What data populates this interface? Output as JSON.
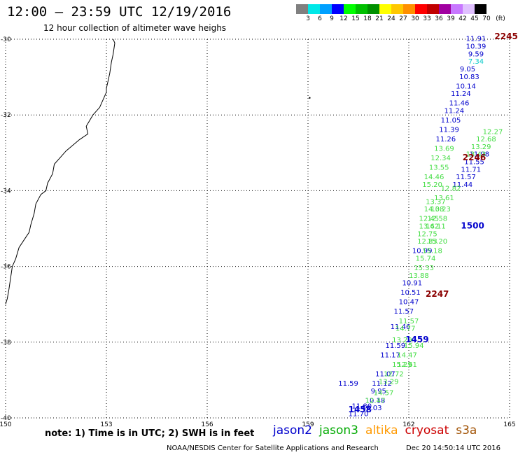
{
  "header": {
    "title": "12:00 – 23:59 UTC 12/19/2016",
    "subtitle": "12 hour collection of altimeter wave heighs"
  },
  "colorbar": {
    "colors": [
      "#808080",
      "#00e8e8",
      "#00a0ff",
      "#0000ff",
      "#00ff00",
      "#00c000",
      "#009000",
      "#ffff00",
      "#ffc800",
      "#ff9000",
      "#ff0000",
      "#c00000",
      "#a000a0",
      "#c878ff",
      "#e0c0ff",
      "#000000"
    ],
    "labels": [
      "3",
      "6",
      "9",
      "12",
      "15",
      "18",
      "21",
      "24",
      "27",
      "30",
      "33",
      "36",
      "39",
      "42",
      "45",
      "70"
    ],
    "unit": "(ft)"
  },
  "map": {
    "lon_min": 150,
    "lon_max": 165,
    "lat_min": -40,
    "lat_max": -30,
    "lat_ticks": [
      {
        "value": -30,
        "label": "-30"
      },
      {
        "value": -32,
        "label": "-32"
      },
      {
        "value": -34,
        "label": "-34"
      },
      {
        "value": -36,
        "label": "-36"
      },
      {
        "value": -38,
        "label": "-38"
      },
      {
        "value": -40,
        "label": "-40"
      }
    ],
    "lon_ticks": [
      {
        "value": 150,
        "label": "150"
      },
      {
        "value": 153,
        "label": "153"
      },
      {
        "value": 156,
        "label": "156"
      },
      {
        "value": 159,
        "label": "159"
      },
      {
        "value": 162,
        "label": "162"
      },
      {
        "value": 165,
        "label": "165"
      }
    ],
    "coastline": [
      [
        153.2,
        -30.0
      ],
      [
        153.25,
        -30.1
      ],
      [
        153.2,
        -30.4
      ],
      [
        153.15,
        -30.6
      ],
      [
        153.1,
        -30.9
      ],
      [
        153.05,
        -31.1
      ],
      [
        153.0,
        -31.3
      ],
      [
        153.0,
        -31.4
      ],
      [
        152.9,
        -31.6
      ],
      [
        152.8,
        -31.8
      ],
      [
        152.6,
        -32.0
      ],
      [
        152.5,
        -32.15
      ],
      [
        152.4,
        -32.3
      ],
      [
        152.45,
        -32.5
      ],
      [
        152.2,
        -32.65
      ],
      [
        152.0,
        -32.8
      ],
      [
        151.8,
        -32.95
      ],
      [
        151.6,
        -33.15
      ],
      [
        151.45,
        -33.3
      ],
      [
        151.4,
        -33.55
      ],
      [
        151.25,
        -33.8
      ],
      [
        151.2,
        -34.0
      ],
      [
        151.05,
        -34.1
      ],
      [
        150.9,
        -34.35
      ],
      [
        150.85,
        -34.6
      ],
      [
        150.75,
        -34.9
      ],
      [
        150.7,
        -35.1
      ],
      [
        150.55,
        -35.3
      ],
      [
        150.4,
        -35.5
      ],
      [
        150.3,
        -35.8
      ],
      [
        150.2,
        -36.0
      ],
      [
        150.15,
        -36.3
      ],
      [
        150.1,
        -36.6
      ],
      [
        150.05,
        -36.85
      ],
      [
        150.0,
        -37.0
      ]
    ],
    "islands": [
      [
        159.05,
        -31.55
      ]
    ]
  },
  "satellites": [
    {
      "name": "jason2",
      "color": "#0000cc"
    },
    {
      "name": "jason3",
      "color": "#00aa00"
    },
    {
      "name": "altika",
      "color": "#ff9900"
    },
    {
      "name": "cryosat",
      "color": "#cc0000"
    },
    {
      "name": "s3a",
      "color": "#a05000"
    }
  ],
  "times": [
    {
      "label": "2245",
      "lon": 164.55,
      "lat": -30.0,
      "color": "#8b0000"
    },
    {
      "label": "2246",
      "lon": 163.6,
      "lat": -33.2,
      "color": "#8b0000"
    },
    {
      "label": "1500",
      "lon": 163.55,
      "lat": -35.0,
      "color": "#0000cc"
    },
    {
      "label": "2247",
      "lon": 162.5,
      "lat": -36.8,
      "color": "#8b0000"
    },
    {
      "label": "1459",
      "lon": 161.9,
      "lat": -38.0,
      "color": "#0000cc"
    },
    {
      "label": "1458",
      "lon": 160.2,
      "lat": -39.85,
      "color": "#0000cc"
    }
  ],
  "chart_data": {
    "type": "scatter",
    "title": "12:00 – 23:59 UTC 12/19/2016",
    "subtitle": "12 hour collection of altimeter wave heighs",
    "xlabel": "",
    "ylabel": "",
    "xlim": [
      150,
      165
    ],
    "ylim": [
      -40,
      -30
    ],
    "series": [
      {
        "name": "jason2",
        "color": "#0000cc",
        "points": [
          [
            164.0,
            -30.05,
            "11.91"
          ],
          [
            164.0,
            -30.25,
            "10.39"
          ],
          [
            164.0,
            -30.45,
            "9.59"
          ],
          [
            164.0,
            -30.65,
            "7.34"
          ],
          [
            163.75,
            -30.85,
            "9.05"
          ],
          [
            163.8,
            -31.05,
            "10.83"
          ],
          [
            163.7,
            -31.3,
            "10.14"
          ],
          [
            163.55,
            -31.5,
            "11.24"
          ],
          [
            163.5,
            -31.75,
            "11.46"
          ],
          [
            163.35,
            -31.95,
            "11.24"
          ],
          [
            163.25,
            -32.2,
            "11.05"
          ],
          [
            163.2,
            -32.45,
            "11.39"
          ],
          [
            163.1,
            -32.7,
            "11.26"
          ],
          [
            164.1,
            -33.1,
            "11.98"
          ],
          [
            163.95,
            -33.3,
            "11.55"
          ],
          [
            163.85,
            -33.5,
            "11.71"
          ],
          [
            163.7,
            -33.7,
            "11.57"
          ],
          [
            163.6,
            -33.9,
            "11.44"
          ],
          [
            162.4,
            -35.65,
            "10.99"
          ],
          [
            162.1,
            -36.5,
            "10.91"
          ],
          [
            162.05,
            -36.75,
            "10.51"
          ],
          [
            162.0,
            -37.0,
            "10.47"
          ],
          [
            161.85,
            -37.25,
            "11.57"
          ],
          [
            161.75,
            -37.65,
            "11.46"
          ],
          [
            161.6,
            -38.15,
            "11.59"
          ],
          [
            161.45,
            -38.4,
            "11.17"
          ],
          [
            161.3,
            -38.9,
            "11.07"
          ],
          [
            161.2,
            -39.15,
            "11.12"
          ],
          [
            161.1,
            -39.35,
            "9.95"
          ],
          [
            161.0,
            -39.6,
            "10.18"
          ],
          [
            160.9,
            -39.8,
            "10.03"
          ],
          [
            160.5,
            -39.95,
            "11.70"
          ],
          [
            160.6,
            -39.75,
            "11.80"
          ],
          [
            160.2,
            -39.15,
            "11.59"
          ]
        ]
      },
      {
        "name": "jason3",
        "color": "#44dd44",
        "points": [
          [
            164.5,
            -32.5,
            "12.27"
          ],
          [
            164.3,
            -32.7,
            "12.68"
          ],
          [
            164.15,
            -32.9,
            "13.29"
          ],
          [
            164.0,
            -33.1,
            "13.43"
          ],
          [
            163.05,
            -32.95,
            "13.69"
          ],
          [
            162.95,
            -33.2,
            "12.34"
          ],
          [
            162.9,
            -33.45,
            "13.55"
          ],
          [
            162.75,
            -33.7,
            "14.46"
          ],
          [
            162.7,
            -33.9,
            "15.20"
          ],
          [
            163.25,
            -34.0,
            "12.82"
          ],
          [
            163.05,
            -34.25,
            "13.61"
          ],
          [
            162.8,
            -34.35,
            "13.37"
          ],
          [
            162.75,
            -34.55,
            "14.08"
          ],
          [
            162.95,
            -34.55,
            "13.23"
          ],
          [
            162.6,
            -34.8,
            "12.45"
          ],
          [
            162.85,
            -34.8,
            "12.58"
          ],
          [
            162.6,
            -35.0,
            "13.62"
          ],
          [
            162.8,
            -35.0,
            "14.11"
          ],
          [
            162.55,
            -35.2,
            "12.75"
          ],
          [
            162.55,
            -35.4,
            "12.83"
          ],
          [
            162.85,
            -35.4,
            "15.20"
          ],
          [
            162.7,
            -35.65,
            "15.18"
          ],
          [
            162.5,
            -35.85,
            "15.74"
          ],
          [
            162.45,
            -36.1,
            "15.33"
          ],
          [
            162.3,
            -36.3,
            "13.88"
          ],
          [
            162.15,
            -38.15,
            "15.94"
          ],
          [
            161.95,
            -38.4,
            "14.47"
          ],
          [
            161.8,
            -38.65,
            "15.29"
          ],
          [
            161.95,
            -38.65,
            "12.61"
          ],
          [
            161.55,
            -38.9,
            "12.72"
          ],
          [
            161.4,
            -39.1,
            "13.29"
          ],
          [
            161.25,
            -39.4,
            "14.57"
          ],
          [
            161.0,
            -39.6,
            "12.47"
          ],
          [
            162.0,
            -37.5,
            "11.57"
          ],
          [
            161.9,
            -37.7,
            "14.77"
          ],
          [
            161.8,
            -38.0,
            "13.29"
          ]
        ]
      }
    ]
  },
  "note": "note:  1) Time is in UTC;  2) SWH is in feet",
  "footer": {
    "center": "NOAA/NESDIS Center for Satellite Applications and Research",
    "timestamp": "Dec 20 14:50:14 UTC 2016"
  }
}
